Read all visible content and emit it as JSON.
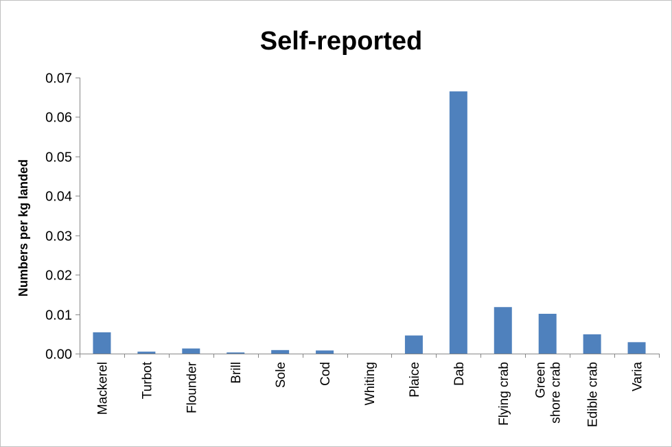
{
  "chart_data": {
    "type": "bar",
    "title": "Self-reported",
    "xlabel": "",
    "ylabel": "Numbers per kg landed",
    "ylim": [
      0,
      0.07
    ],
    "yticks": [
      "0.00",
      "0.01",
      "0.02",
      "0.03",
      "0.04",
      "0.05",
      "0.06",
      "0.07"
    ],
    "categories": [
      [
        "Mackerel"
      ],
      [
        "Turbot"
      ],
      [
        "Flounder"
      ],
      [
        "Brill"
      ],
      [
        "Sole"
      ],
      [
        "Cod"
      ],
      [
        "Whiting"
      ],
      [
        "Plaice"
      ],
      [
        "Dab"
      ],
      [
        "Flying crab"
      ],
      [
        "Green",
        "shore crab"
      ],
      [
        "Edible crab"
      ],
      [
        "Varia"
      ]
    ],
    "values": [
      0.0054,
      0.0005,
      0.0013,
      0.0003,
      0.0009,
      0.0008,
      0.0,
      0.0046,
      0.0665,
      0.0118,
      0.0101,
      0.0049,
      0.0029
    ],
    "grid": false,
    "legend": "none",
    "bar_color": "#4f81bd",
    "axis_color": "#868686"
  }
}
